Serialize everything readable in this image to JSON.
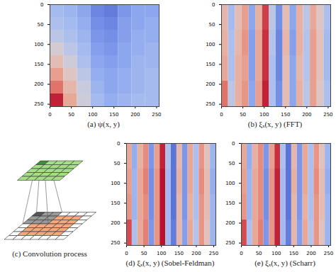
{
  "chart_data": [
    {
      "type": "heatmap",
      "title": "(a) ψ(x, y)",
      "xlim": [
        0,
        256
      ],
      "ylim": [
        256,
        0
      ],
      "xticks": [
        0,
        50,
        100,
        150,
        200,
        250
      ],
      "yticks": [
        0,
        50,
        100,
        150,
        200,
        250
      ],
      "zlim": [
        -1,
        1
      ],
      "x_edges": [
        0,
        32,
        64,
        96,
        128,
        160,
        192,
        224,
        256
      ],
      "y_edges": [
        0,
        32,
        64,
        96,
        128,
        160,
        192,
        224,
        256
      ],
      "cells": [
        [
          -0.35,
          -0.4,
          -0.5,
          -0.7,
          -0.75,
          -0.6,
          -0.5,
          -0.5
        ],
        [
          -0.3,
          -0.35,
          -0.45,
          -0.65,
          -0.7,
          -0.55,
          -0.5,
          -0.45
        ],
        [
          -0.2,
          -0.3,
          -0.4,
          -0.6,
          -0.65,
          -0.55,
          -0.45,
          -0.45
        ],
        [
          0.0,
          -0.2,
          -0.35,
          -0.55,
          -0.6,
          -0.5,
          -0.45,
          -0.4
        ],
        [
          0.2,
          -0.05,
          -0.3,
          -0.5,
          -0.55,
          -0.5,
          -0.4,
          -0.4
        ],
        [
          0.4,
          0.1,
          -0.2,
          -0.45,
          -0.5,
          -0.45,
          -0.4,
          -0.35
        ],
        [
          0.6,
          0.25,
          -0.1,
          -0.4,
          -0.5,
          -0.45,
          -0.4,
          -0.35
        ],
        [
          0.9,
          0.35,
          -0.05,
          -0.35,
          -0.45,
          -0.4,
          -0.35,
          -0.35
        ]
      ]
    },
    {
      "type": "heatmap",
      "title": "(b) ξₓ(x, y) (FFT)",
      "xlim": [
        0,
        256
      ],
      "ylim": [
        256,
        0
      ],
      "xticks": [
        0,
        50,
        100,
        150,
        200,
        250
      ],
      "yticks": [
        0,
        50,
        100,
        150,
        200,
        250
      ],
      "zlim": [
        -1,
        1
      ],
      "x_edges": [
        0,
        16,
        32,
        48,
        64,
        80,
        96,
        112,
        128,
        144,
        160,
        176,
        192,
        208,
        224,
        240,
        256
      ],
      "y_edges": [
        0,
        64,
        128,
        192,
        256
      ],
      "cells": [
        [
          0.25,
          -0.35,
          0.2,
          0.4,
          -0.5,
          0.3,
          0.8,
          -0.2,
          -0.65,
          0.2,
          -0.5,
          0.3,
          -0.2,
          0.35,
          0.1,
          -0.3
        ],
        [
          0.3,
          -0.3,
          0.25,
          0.45,
          -0.55,
          0.35,
          0.85,
          -0.25,
          -0.7,
          0.25,
          -0.55,
          0.3,
          -0.25,
          0.4,
          0.15,
          -0.35
        ],
        [
          0.35,
          -0.3,
          0.3,
          0.4,
          -0.55,
          0.35,
          0.85,
          -0.3,
          -0.7,
          0.2,
          -0.5,
          0.25,
          -0.25,
          0.4,
          0.15,
          -0.35
        ],
        [
          0.6,
          -0.2,
          0.3,
          0.45,
          -0.5,
          0.4,
          0.9,
          -0.3,
          -0.65,
          0.2,
          -0.5,
          0.3,
          -0.2,
          0.4,
          0.1,
          -0.3
        ]
      ]
    },
    {
      "type": "heatmap",
      "title": "(d) ξₓ(x, y) (Sobel-Feldman)",
      "xlim": [
        0,
        256
      ],
      "ylim": [
        256,
        0
      ],
      "xticks": [
        0,
        50,
        100,
        150,
        200,
        250
      ],
      "yticks": [
        0,
        50,
        100,
        150,
        200,
        250
      ],
      "zlim": [
        -1,
        1
      ],
      "x_edges": [
        0,
        16,
        32,
        48,
        64,
        80,
        96,
        112,
        128,
        144,
        160,
        176,
        192,
        208,
        224,
        240,
        256
      ],
      "y_edges": [
        0,
        64,
        128,
        192,
        256
      ],
      "cells": [
        [
          0.35,
          -0.45,
          0.3,
          0.5,
          -0.6,
          0.4,
          0.9,
          -0.3,
          -0.8,
          0.25,
          -0.6,
          0.35,
          -0.3,
          0.45,
          0.15,
          -0.4
        ],
        [
          0.4,
          -0.4,
          0.35,
          0.55,
          -0.65,
          0.45,
          0.95,
          -0.35,
          -0.8,
          0.3,
          -0.6,
          0.35,
          -0.3,
          0.5,
          0.2,
          -0.45
        ],
        [
          0.45,
          -0.4,
          0.35,
          0.5,
          -0.65,
          0.45,
          0.95,
          -0.35,
          -0.8,
          0.25,
          -0.6,
          0.3,
          -0.3,
          0.45,
          0.2,
          -0.4
        ],
        [
          0.75,
          -0.3,
          0.35,
          0.55,
          -0.6,
          0.45,
          0.95,
          -0.35,
          -0.75,
          0.25,
          -0.55,
          0.35,
          -0.25,
          0.45,
          0.15,
          -0.4
        ]
      ]
    },
    {
      "type": "heatmap",
      "title": "(e) ξₓ(x, y) (Scharr)",
      "xlim": [
        0,
        256
      ],
      "ylim": [
        256,
        0
      ],
      "xticks": [
        0,
        50,
        100,
        150,
        200,
        250
      ],
      "yticks": [
        0,
        50,
        100,
        150,
        200,
        250
      ],
      "zlim": [
        -1,
        1
      ],
      "x_edges": [
        0,
        16,
        32,
        48,
        64,
        80,
        96,
        112,
        128,
        144,
        160,
        176,
        192,
        208,
        224,
        240,
        256
      ],
      "y_edges": [
        0,
        64,
        128,
        192,
        256
      ],
      "cells": [
        [
          0.35,
          -0.45,
          0.3,
          0.5,
          -0.6,
          0.4,
          0.85,
          -0.3,
          -0.8,
          0.25,
          -0.6,
          0.35,
          -0.3,
          0.45,
          0.15,
          -0.4
        ],
        [
          0.4,
          -0.4,
          0.35,
          0.5,
          -0.65,
          0.45,
          0.9,
          -0.35,
          -0.8,
          0.3,
          -0.6,
          0.35,
          -0.3,
          0.5,
          0.2,
          -0.45
        ],
        [
          0.45,
          -0.4,
          0.35,
          0.5,
          -0.65,
          0.45,
          0.9,
          -0.35,
          -0.8,
          0.25,
          -0.6,
          0.3,
          -0.3,
          0.45,
          0.2,
          -0.4
        ],
        [
          0.75,
          -0.3,
          0.35,
          0.55,
          -0.6,
          0.45,
          0.9,
          -0.35,
          -0.75,
          0.25,
          -0.55,
          0.35,
          -0.25,
          0.45,
          0.15,
          -0.4
        ]
      ]
    }
  ],
  "diagram": {
    "title": "(c) Convolution process"
  }
}
